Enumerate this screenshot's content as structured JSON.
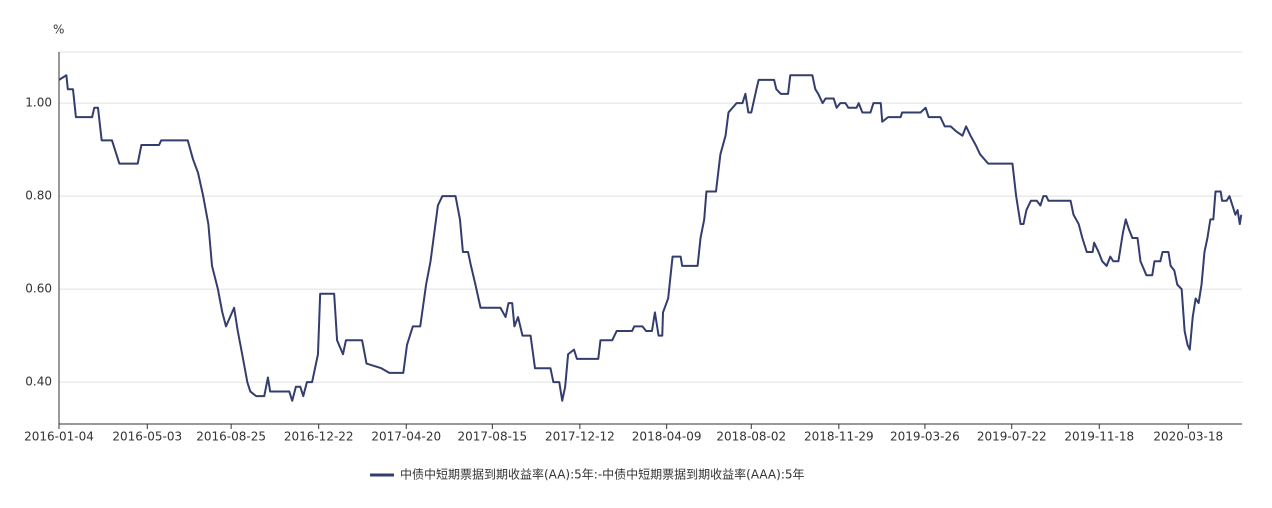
{
  "chart_data": {
    "type": "line",
    "y_unit": "%",
    "xlim": [
      "2016-01-04",
      "2020-05-30"
    ],
    "xticks": [
      "2016-01-04",
      "2016-05-03",
      "2016-08-25",
      "2016-12-22",
      "2017-04-20",
      "2017-08-15",
      "2017-12-12",
      "2018-04-09",
      "2018-08-02",
      "2018-11-29",
      "2019-03-26",
      "2019-07-22",
      "2019-11-18",
      "2020-03-18"
    ],
    "ylim": [
      0.31,
      1.11
    ],
    "yticks": [
      {
        "value": 0.4,
        "label": "0.40"
      },
      {
        "value": 0.6,
        "label": "0.60"
      },
      {
        "value": 0.8,
        "label": "0.80"
      },
      {
        "value": 1.0,
        "label": "1.00"
      }
    ],
    "grid": true,
    "legend": "bottom",
    "x": [
      "2016-01-04",
      "2016-01-14",
      "2016-01-16",
      "2016-01-23",
      "2016-01-27",
      "2016-02-18",
      "2016-02-21",
      "2016-02-26",
      "2016-03-02",
      "2016-03-16",
      "2016-03-26",
      "2016-04-20",
      "2016-04-25",
      "2016-05-19",
      "2016-05-22",
      "2016-06-27",
      "2016-07-04",
      "2016-07-11",
      "2016-07-18",
      "2016-07-25",
      "2016-07-30",
      "2016-08-07",
      "2016-08-13",
      "2016-08-18",
      "2016-08-29",
      "2016-09-03",
      "2016-09-09",
      "2016-09-16",
      "2016-09-20",
      "2016-09-28",
      "2016-10-09",
      "2016-10-14",
      "2016-10-17",
      "2016-11-12",
      "2016-11-16",
      "2016-11-21",
      "2016-11-27",
      "2016-12-01",
      "2016-12-06",
      "2016-12-13",
      "2016-12-21",
      "2016-12-24",
      "2017-01-12",
      "2017-01-16",
      "2017-01-24",
      "2017-01-28",
      "2017-02-19",
      "2017-02-25",
      "2017-03-17",
      "2017-03-28",
      "2017-04-16",
      "2017-04-21",
      "2017-04-29",
      "2017-05-09",
      "2017-05-17",
      "2017-05-23",
      "2017-05-28",
      "2017-06-02",
      "2017-06-08",
      "2017-06-26",
      "2017-07-02",
      "2017-07-06",
      "2017-07-13",
      "2017-07-17",
      "2017-07-23",
      "2017-07-30",
      "2017-08-26",
      "2017-09-02",
      "2017-09-06",
      "2017-09-11",
      "2017-09-14",
      "2017-09-19",
      "2017-09-25",
      "2017-10-06",
      "2017-10-12",
      "2017-11-02",
      "2017-11-06",
      "2017-11-14",
      "2017-11-18",
      "2017-11-22",
      "2017-11-26",
      "2017-12-04",
      "2017-12-08",
      "2018-01-06",
      "2018-01-09",
      "2018-01-25",
      "2018-01-31",
      "2018-02-21",
      "2018-02-24",
      "2018-03-07",
      "2018-03-12",
      "2018-03-20",
      "2018-03-24",
      "2018-03-29",
      "2018-04-03",
      "2018-04-04",
      "2018-04-11",
      "2018-04-17",
      "2018-04-28",
      "2018-04-30",
      "2018-05-21",
      "2018-05-25",
      "2018-05-30",
      "2018-06-02",
      "2018-06-15",
      "2018-06-21",
      "2018-06-28",
      "2018-07-02",
      "2018-07-13",
      "2018-07-21",
      "2018-07-25",
      "2018-07-29",
      "2018-08-02",
      "2018-08-09",
      "2018-08-12",
      "2018-09-02",
      "2018-09-05",
      "2018-09-11",
      "2018-09-21",
      "2018-09-24",
      "2018-10-24",
      "2018-10-28",
      "2018-11-01",
      "2018-11-07",
      "2018-11-11",
      "2018-11-22",
      "2018-11-26",
      "2018-12-01",
      "2018-12-08",
      "2018-12-12",
      "2018-12-23",
      "2018-12-26",
      "2018-12-31",
      "2019-01-11",
      "2019-01-15",
      "2019-01-25",
      "2019-01-27",
      "2019-02-04",
      "2019-02-21",
      "2019-02-23",
      "2019-03-20",
      "2019-03-27",
      "2019-03-31",
      "2019-04-16",
      "2019-04-22",
      "2019-04-30",
      "2019-05-07",
      "2019-05-16",
      "2019-05-21",
      "2019-05-27",
      "2019-06-03",
      "2019-06-09",
      "2019-06-20",
      "2019-07-23",
      "2019-07-28",
      "2019-08-03",
      "2019-08-07",
      "2019-08-11",
      "2019-08-17",
      "2019-08-25",
      "2019-08-30",
      "2019-09-03",
      "2019-09-07",
      "2019-09-10",
      "2019-10-10",
      "2019-10-14",
      "2019-10-21",
      "2019-10-26",
      "2019-11-01",
      "2019-11-09",
      "2019-11-11",
      "2019-11-17",
      "2019-11-22",
      "2019-11-28",
      "2019-12-03",
      "2019-12-07",
      "2019-12-14",
      "2019-12-20",
      "2019-12-24",
      "2019-12-28",
      "2020-01-02",
      "2020-01-09",
      "2020-01-13",
      "2020-01-21",
      "2020-01-29",
      "2020-02-01",
      "2020-02-09",
      "2020-02-12",
      "2020-02-20",
      "2020-02-23",
      "2020-02-28",
      "2020-03-03",
      "2020-03-09",
      "2020-03-13",
      "2020-03-17",
      "2020-03-20",
      "2020-03-24",
      "2020-03-28",
      "2020-04-01",
      "2020-04-05",
      "2020-04-09",
      "2020-04-13",
      "2020-04-17",
      "2020-04-21",
      "2020-04-24",
      "2020-05-01",
      "2020-05-03",
      "2020-05-09",
      "2020-05-13",
      "2020-05-17",
      "2020-05-21",
      "2020-05-24",
      "2020-05-27",
      "2020-05-29"
    ],
    "series": [
      {
        "name": "中债中短期票据到期收益率(AA):5年:-中债中短期票据到期收益率(AAA):5年",
        "color": "#333d6e",
        "values": [
          1.05,
          1.06,
          1.03,
          1.03,
          0.97,
          0.97,
          0.99,
          0.99,
          0.92,
          0.92,
          0.87,
          0.87,
          0.91,
          0.91,
          0.92,
          0.92,
          0.88,
          0.85,
          0.8,
          0.74,
          0.65,
          0.6,
          0.55,
          0.52,
          0.56,
          0.51,
          0.46,
          0.4,
          0.38,
          0.37,
          0.37,
          0.41,
          0.38,
          0.38,
          0.36,
          0.39,
          0.39,
          0.37,
          0.4,
          0.4,
          0.46,
          0.59,
          0.59,
          0.49,
          0.46,
          0.49,
          0.49,
          0.44,
          0.43,
          0.42,
          0.42,
          0.48,
          0.52,
          0.52,
          0.61,
          0.66,
          0.72,
          0.78,
          0.8,
          0.8,
          0.75,
          0.68,
          0.68,
          0.65,
          0.61,
          0.56,
          0.56,
          0.54,
          0.57,
          0.57,
          0.52,
          0.54,
          0.5,
          0.5,
          0.43,
          0.43,
          0.4,
          0.4,
          0.36,
          0.39,
          0.46,
          0.47,
          0.45,
          0.45,
          0.49,
          0.49,
          0.51,
          0.51,
          0.52,
          0.52,
          0.51,
          0.51,
          0.55,
          0.5,
          0.5,
          0.55,
          0.58,
          0.67,
          0.67,
          0.65,
          0.65,
          0.71,
          0.75,
          0.81,
          0.81,
          0.89,
          0.93,
          0.98,
          1.0,
          1.0,
          1.02,
          0.98,
          0.98,
          1.03,
          1.05,
          1.05,
          1.03,
          1.02,
          1.02,
          1.06,
          1.06,
          1.03,
          1.02,
          1.0,
          1.01,
          1.01,
          0.99,
          1.0,
          1.0,
          0.99,
          0.99,
          1.0,
          0.98,
          0.98,
          1.0,
          1.0,
          0.96,
          0.97,
          0.97,
          0.98,
          0.98,
          0.99,
          0.97,
          0.97,
          0.95,
          0.95,
          0.94,
          0.93,
          0.95,
          0.93,
          0.91,
          0.89,
          0.87,
          0.87,
          0.8,
          0.74,
          0.74,
          0.77,
          0.79,
          0.79,
          0.78,
          0.8,
          0.8,
          0.79,
          0.79,
          0.76,
          0.74,
          0.71,
          0.68,
          0.68,
          0.7,
          0.68,
          0.66,
          0.65,
          0.67,
          0.66,
          0.66,
          0.72,
          0.75,
          0.73,
          0.71,
          0.71,
          0.66,
          0.63,
          0.63,
          0.66,
          0.66,
          0.68,
          0.68,
          0.65,
          0.64,
          0.61,
          0.6,
          0.51,
          0.48,
          0.47,
          0.54,
          0.58,
          0.57,
          0.61,
          0.68,
          0.71,
          0.75,
          0.75,
          0.81,
          0.81,
          0.79,
          0.79,
          0.8,
          0.78,
          0.76,
          0.77,
          0.74,
          0.76
        ]
      }
    ]
  }
}
